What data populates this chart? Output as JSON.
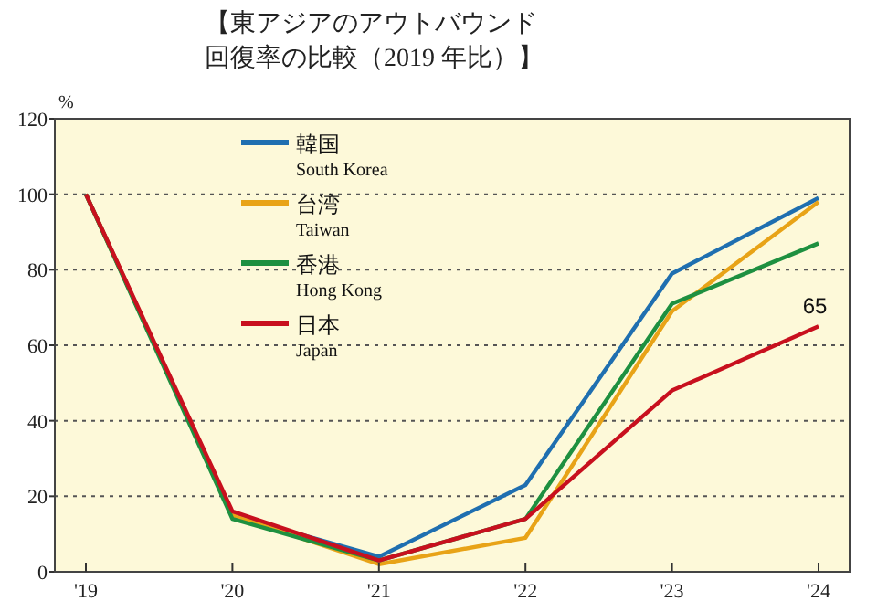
{
  "chart_data": {
    "type": "line",
    "title": "【東アジアのアウトバウンド回復率の比較（2019 年比）】",
    "ylabel": "%",
    "categories": [
      "'19",
      "'20",
      "'21",
      "'22",
      "'23",
      "'24"
    ],
    "series": [
      {
        "name": "韓国 South Korea",
        "color": "#1f6fb0",
        "values": [
          100,
          15,
          4,
          23,
          79,
          99
        ]
      },
      {
        "name": "台湾 Taiwan",
        "color": "#e8a317",
        "values": [
          100,
          15,
          2,
          9,
          69,
          98
        ]
      },
      {
        "name": "香港 Hong Kong",
        "color": "#1e9040",
        "values": [
          100,
          14,
          3,
          14,
          71,
          87
        ]
      },
      {
        "name": "日本 Japan",
        "color": "#c8101e",
        "values": [
          100,
          16,
          3,
          14,
          48,
          65
        ]
      }
    ],
    "ylim": [
      0,
      120
    ],
    "yticks": [
      0,
      20,
      40,
      60,
      80,
      100,
      120
    ],
    "grid": "y",
    "legend": "top left",
    "annotations": [
      {
        "text": "65",
        "x": "'24",
        "y": 65
      }
    ]
  }
}
